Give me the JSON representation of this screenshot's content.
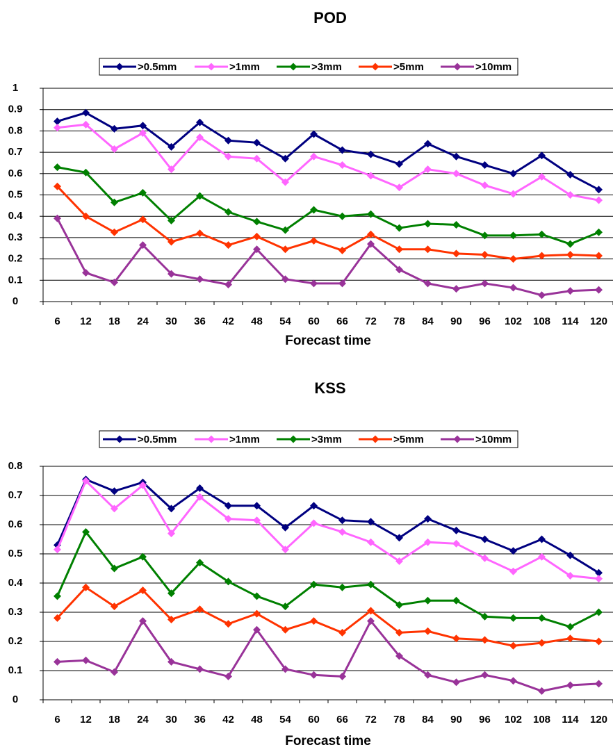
{
  "chart_data": [
    {
      "type": "line",
      "title": "POD",
      "x_label": "Forecast time",
      "categories": [
        "6",
        "12",
        "18",
        "24",
        "30",
        "36",
        "42",
        "48",
        "54",
        "60",
        "66",
        "72",
        "78",
        "84",
        "90",
        "96",
        "102",
        "108",
        "114",
        "120"
      ],
      "ylim": [
        0,
        1
      ],
      "yticks": [
        0,
        0.1,
        0.2,
        0.3,
        0.4,
        0.5,
        0.6,
        0.7,
        0.8,
        0.9,
        1
      ],
      "grid": true,
      "legend": "top",
      "series": [
        {
          "name": ">0.5mm",
          "color": "#000080",
          "values": [
            0.845,
            0.885,
            0.81,
            0.825,
            0.725,
            0.84,
            0.755,
            0.745,
            0.67,
            0.785,
            0.71,
            0.69,
            0.645,
            0.74,
            0.68,
            0.64,
            0.6,
            0.685,
            0.595,
            0.525
          ]
        },
        {
          "name": ">1mm",
          "color": "#ff66ff",
          "values": [
            0.815,
            0.83,
            0.715,
            0.79,
            0.62,
            0.77,
            0.68,
            0.67,
            0.56,
            0.68,
            0.64,
            0.59,
            0.535,
            0.62,
            0.6,
            0.545,
            0.505,
            0.585,
            0.5,
            0.475
          ]
        },
        {
          "name": ">3mm",
          "color": "#008000",
          "values": [
            0.63,
            0.605,
            0.465,
            0.51,
            0.38,
            0.495,
            0.42,
            0.375,
            0.335,
            0.43,
            0.4,
            0.41,
            0.345,
            0.365,
            0.36,
            0.31,
            0.31,
            0.315,
            0.27,
            0.325
          ]
        },
        {
          "name": ">5mm",
          "color": "#ff3300",
          "values": [
            0.54,
            0.4,
            0.325,
            0.385,
            0.28,
            0.32,
            0.265,
            0.305,
            0.245,
            0.285,
            0.24,
            0.315,
            0.245,
            0.245,
            0.225,
            0.22,
            0.2,
            0.215,
            0.22,
            0.215
          ]
        },
        {
          "name": ">10mm",
          "color": "#993399",
          "values": [
            0.39,
            0.135,
            0.09,
            0.265,
            0.13,
            0.105,
            0.08,
            0.245,
            0.105,
            0.085,
            0.085,
            0.27,
            0.15,
            0.085,
            0.06,
            0.085,
            0.065,
            0.03,
            0.05,
            0.055
          ]
        }
      ]
    },
    {
      "type": "line",
      "title": "KSS",
      "x_label": "Forecast time",
      "categories": [
        "6",
        "12",
        "18",
        "24",
        "30",
        "36",
        "42",
        "48",
        "54",
        "60",
        "66",
        "72",
        "78",
        "84",
        "90",
        "96",
        "102",
        "108",
        "114",
        "120"
      ],
      "ylim": [
        0,
        0.8
      ],
      "yticks": [
        0,
        0.1,
        0.2,
        0.3,
        0.4,
        0.5,
        0.6,
        0.7,
        0.8
      ],
      "grid": true,
      "legend": "top",
      "series": [
        {
          "name": ">0.5mm",
          "color": "#000080",
          "values": [
            0.53,
            0.755,
            0.715,
            0.745,
            0.655,
            0.725,
            0.665,
            0.665,
            0.59,
            0.665,
            0.615,
            0.61,
            0.555,
            0.62,
            0.58,
            0.55,
            0.51,
            0.55,
            0.495,
            0.435
          ]
        },
        {
          "name": ">1mm",
          "color": "#ff66ff",
          "values": [
            0.515,
            0.75,
            0.655,
            0.735,
            0.57,
            0.695,
            0.62,
            0.615,
            0.515,
            0.605,
            0.575,
            0.54,
            0.475,
            0.54,
            0.535,
            0.485,
            0.44,
            0.49,
            0.425,
            0.415
          ]
        },
        {
          "name": ">3mm",
          "color": "#008000",
          "values": [
            0.355,
            0.575,
            0.45,
            0.49,
            0.365,
            0.47,
            0.405,
            0.355,
            0.32,
            0.395,
            0.385,
            0.395,
            0.325,
            0.34,
            0.34,
            0.285,
            0.28,
            0.28,
            0.25,
            0.3
          ]
        },
        {
          "name": ">5mm",
          "color": "#ff3300",
          "values": [
            0.28,
            0.385,
            0.32,
            0.375,
            0.275,
            0.31,
            0.26,
            0.295,
            0.24,
            0.27,
            0.23,
            0.305,
            0.23,
            0.235,
            0.21,
            0.205,
            0.185,
            0.195,
            0.21,
            0.2
          ]
        },
        {
          "name": ">10mm",
          "color": "#993399",
          "values": [
            0.13,
            0.135,
            0.095,
            0.27,
            0.13,
            0.105,
            0.08,
            0.24,
            0.105,
            0.085,
            0.08,
            0.27,
            0.15,
            0.085,
            0.06,
            0.085,
            0.065,
            0.03,
            0.05,
            0.055
          ]
        }
      ]
    }
  ]
}
